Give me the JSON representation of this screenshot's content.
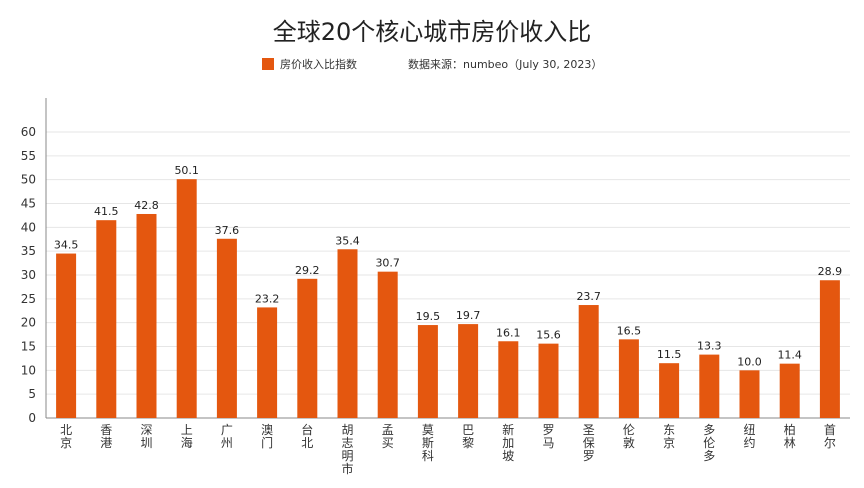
{
  "chart_data": {
    "type": "bar",
    "title": "全球20个核心城市房价收入比",
    "series": [
      {
        "name": "房价收入比指数",
        "values": [
          34.5,
          41.5,
          42.8,
          50.1,
          37.6,
          23.2,
          29.2,
          35.4,
          30.7,
          19.5,
          19.7,
          16.1,
          15.6,
          23.7,
          16.5,
          11.5,
          13.3,
          10.0,
          11.4,
          28.9
        ]
      }
    ],
    "categories": [
      "北京",
      "香港",
      "深圳",
      "上海",
      "广州",
      "澳门",
      "台北",
      "胡志明市",
      "孟买",
      "莫斯科",
      "巴黎",
      "新加坡",
      "罗马",
      "圣保罗",
      "伦敦",
      "东京",
      "多伦多",
      "纽约",
      "柏林",
      "首尔"
    ],
    "data_labels": [
      "34.5",
      "41.5",
      "42.8",
      "50.1",
      "37.6",
      "23.2",
      "29.2",
      "35.4",
      "30.7",
      "19.5",
      "19.7",
      "16.1",
      "15.6",
      "23.7",
      "16.5",
      "11.5",
      "13.3",
      "10.0",
      "11.4",
      "28.9"
    ],
    "source_note": "数据来源：numbeo（July 30, 2023）",
    "ylim": [
      0,
      60
    ],
    "yticks": [
      0,
      5,
      10,
      15,
      20,
      25,
      30,
      35,
      40,
      45,
      50,
      55,
      60
    ],
    "grid": true,
    "legend_position": "top-center",
    "bar_color": "#E4570F",
    "grid_color": "#E6E6E6",
    "axis_color": "#888888"
  }
}
